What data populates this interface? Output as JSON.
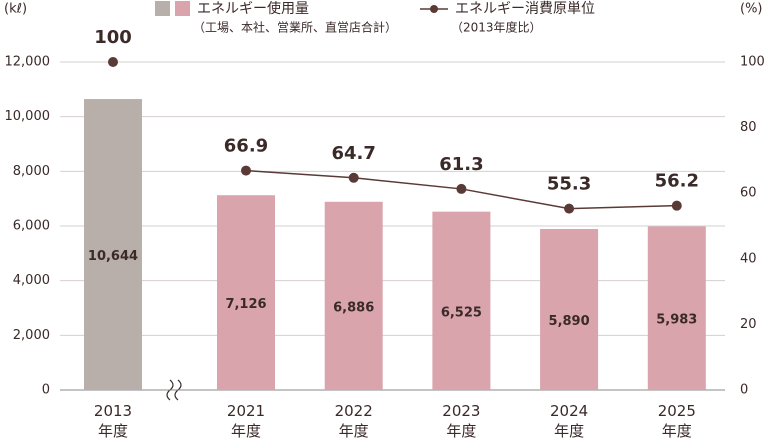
{
  "chart_data": {
    "type": "bar_line",
    "y_label": "(kℓ)",
    "y2_label": "(%)",
    "categories": [
      "2013年度",
      "2021年度",
      "2022年度",
      "2023年度",
      "2024年度",
      "2025年度"
    ],
    "series": [
      {
        "name": "エネルギー使用量",
        "note": "（工場、本社、営業所、直営店合計）",
        "type": "bar",
        "colors": [
          "#b8aeaa",
          "#d9a4ac",
          "#d9a4ac",
          "#d9a4ac",
          "#d9a4ac",
          "#d9a4ac"
        ],
        "values": [
          10644,
          7126,
          6886,
          6525,
          5890,
          5983
        ],
        "value_labels": [
          "10,644",
          "7,126",
          "6,886",
          "6,525",
          "5,890",
          "5,983"
        ]
      },
      {
        "name": "エネルギー消費原単位",
        "note": "（2013年度比）",
        "type": "line",
        "axis": "y2",
        "color": "#5a3a36",
        "values": [
          100,
          66.9,
          64.7,
          61.3,
          55.3,
          56.2
        ]
      }
    ],
    "ylim": [
      0,
      12000
    ],
    "yticks": [
      0,
      {
        "value": 2000,
        "label": "2,000"
      },
      {
        "value": 4000,
        "label": "4,000"
      },
      {
        "value": 6000,
        "label": "6,000"
      },
      {
        "value": 8000,
        "label": "8,000"
      },
      {
        "value": 10000,
        "label": "10,000"
      },
      {
        "value": 12000,
        "label": "12,000"
      }
    ],
    "y2lim": [
      0,
      100
    ],
    "y2ticks": [
      0,
      20,
      40,
      60,
      80,
      100
    ],
    "grid": true
  }
}
